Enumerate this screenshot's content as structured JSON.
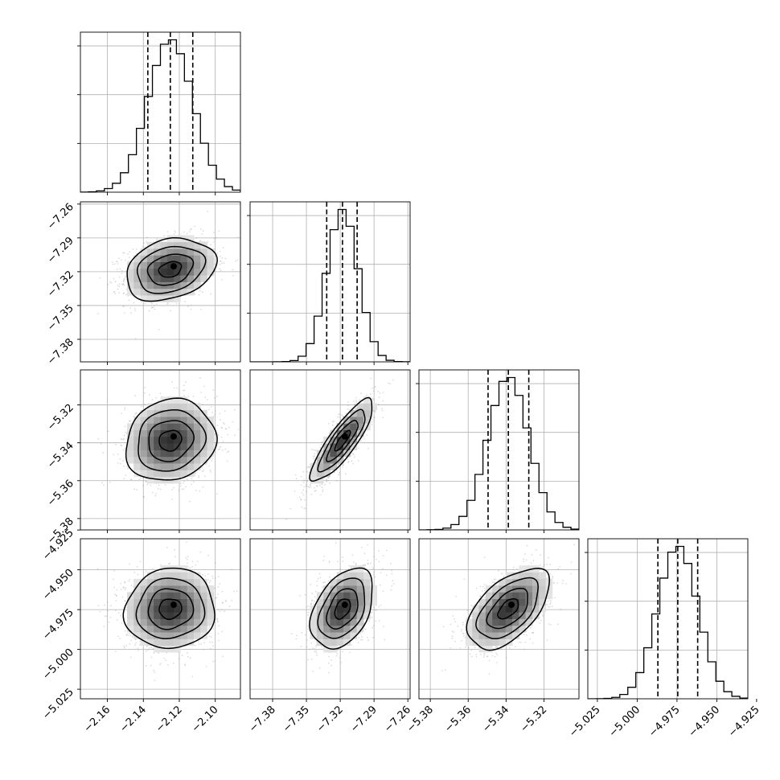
{
  "chart_data": {
    "type": "corner",
    "title": "",
    "parameters": [
      {
        "label": "",
        "mean": -2.125,
        "sigma": 0.0125,
        "range": [
          -2.175,
          -2.086
        ],
        "ticks": [
          -2.16,
          -2.14,
          -2.12,
          -2.1
        ],
        "tick_labels": [
          "−2.16",
          "−2.14",
          "−2.12",
          "−2.10"
        ],
        "quantiles": [
          -2.1375,
          -2.125,
          -2.1125
        ]
      },
      {
        "label": "",
        "mean": -7.318,
        "sigma": 0.0138,
        "range": [
          -7.4,
          -7.258
        ],
        "ticks": [
          -7.38,
          -7.35,
          -7.32,
          -7.29,
          -7.26
        ],
        "tick_labels": [
          "−7.38",
          "−7.35",
          "−7.32",
          "−7.29",
          "−7.26"
        ],
        "quantiles": [
          -7.332,
          -7.318,
          -7.305
        ]
      },
      {
        "label": "",
        "mean": -5.3388,
        "sigma": 0.0108,
        "range": [
          -5.386,
          -5.3015
        ],
        "ticks": [
          -5.38,
          -5.36,
          -5.34,
          -5.32
        ],
        "tick_labels": [
          "−5.38",
          "−5.36",
          "−5.34",
          "−5.32"
        ],
        "quantiles": [
          -5.3495,
          -5.3388,
          -5.328
        ]
      },
      {
        "label": "",
        "mean": -4.9745,
        "sigma": 0.0126,
        "range": [
          -5.031,
          -4.9305
        ],
        "ticks": [
          -5.025,
          -5.0,
          -4.975,
          -4.95,
          -4.925
        ],
        "tick_labels": [
          "−5.025",
          "−5.000",
          "−4.975",
          "−4.950",
          "−4.925"
        ],
        "quantiles": [
          -4.987,
          -4.9745,
          -4.962
        ]
      }
    ],
    "correlations": [
      [
        1.0,
        0.25,
        0.12,
        0.05
      ],
      [
        0.25,
        1.0,
        0.85,
        0.4
      ],
      [
        0.12,
        0.85,
        1.0,
        0.55
      ],
      [
        0.05,
        0.4,
        0.55,
        1.0
      ]
    ],
    "quantile_levels": [
      0.16,
      0.5,
      0.84
    ],
    "contour_levels_sigma": [
      0.5,
      1.0,
      1.5,
      2.0
    ],
    "diagonal": "histogram",
    "off_diagonal": "2d-histogram-with-contours",
    "grid": true,
    "legend": "none"
  }
}
